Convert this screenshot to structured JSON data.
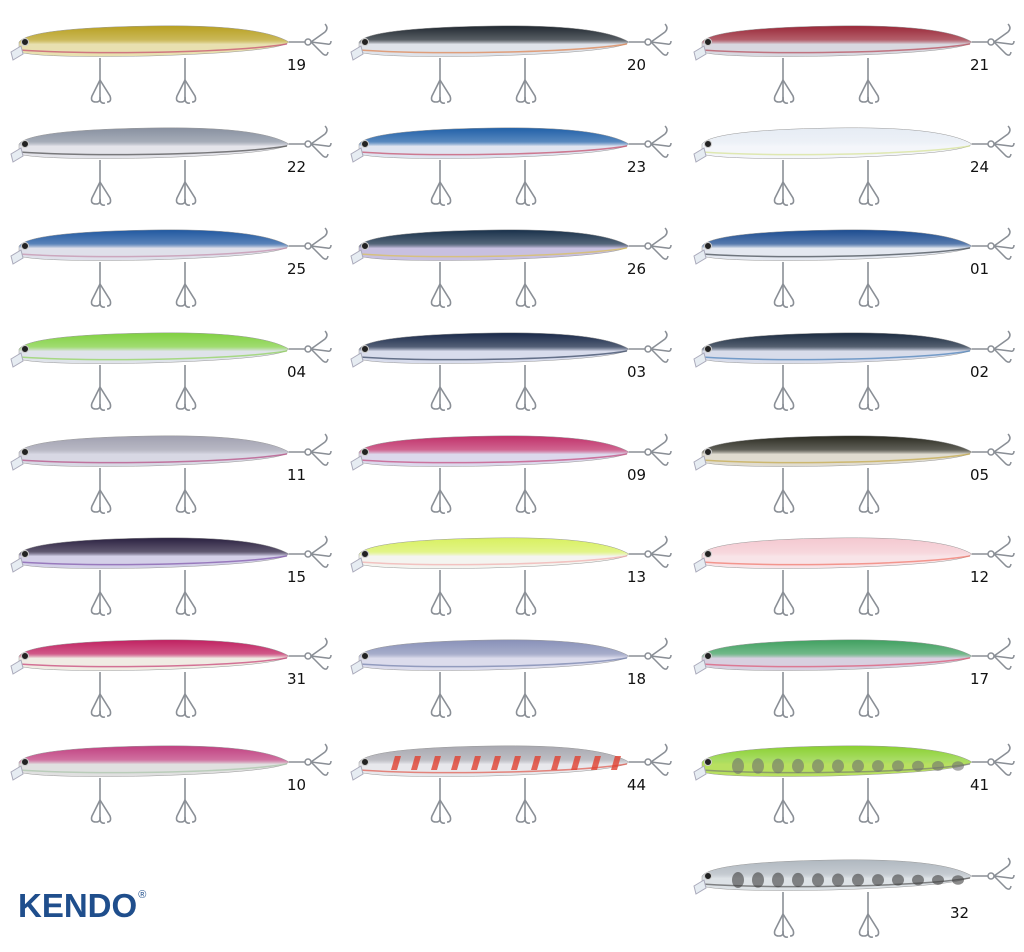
{
  "brand": {
    "name": "KENDO",
    "mark": "®",
    "color": "#1f4e8c"
  },
  "lures": [
    {
      "code": "19",
      "top": "#b8a020",
      "belly": "#e8e0b0",
      "accent": "#c03060"
    },
    {
      "code": "20",
      "top": "#202830",
      "belly": "#dfe3ea",
      "accent": "#e07030"
    },
    {
      "code": "21",
      "top": "#9a2838",
      "belly": "#d8d8e0",
      "accent": "#b03040"
    },
    {
      "code": "22",
      "top": "#8890a0",
      "belly": "#e4e4ea",
      "accent": "#303030"
    },
    {
      "code": "23",
      "top": "#2060a8",
      "belly": "#e0e4f0",
      "accent": "#c03050"
    },
    {
      "code": "24",
      "top": "#e6ecf4",
      "belly": "#f4f6fa",
      "accent": "#d0e080"
    },
    {
      "code": "25",
      "top": "#2058a0",
      "belly": "#dfe0ea",
      "accent": "#c080a0"
    },
    {
      "code": "26",
      "top": "#18304a",
      "belly": "#c8c0e0",
      "accent": "#e0c040"
    },
    {
      "code": "01",
      "top": "#1c4c90",
      "belly": "#e4e8f0",
      "accent": "#202830"
    },
    {
      "code": "04",
      "top": "#80d040",
      "belly": "#dfe3ea",
      "accent": "#80d040"
    },
    {
      "code": "03",
      "top": "#182848",
      "belly": "#d8dcec",
      "accent": "#182848"
    },
    {
      "code": "02",
      "top": "#1a2a40",
      "belly": "#d8dcea",
      "accent": "#3070b0"
    },
    {
      "code": "11",
      "top": "#a0a0b0",
      "belly": "#d8d8e4",
      "accent": "#b03070"
    },
    {
      "code": "09",
      "top": "#c0306a",
      "belly": "#dcd8ec",
      "accent": "#c0306a"
    },
    {
      "code": "05",
      "top": "#2a2a20",
      "belly": "#e0dcd0",
      "accent": "#c0a030"
    },
    {
      "code": "15",
      "top": "#2a2040",
      "belly": "#d4d0e8",
      "accent": "#7040a0"
    },
    {
      "code": "13",
      "top": "#d8f060",
      "belly": "#f4f4f0",
      "accent": "#f0a0a0"
    },
    {
      "code": "12",
      "top": "#f4c8d0",
      "belly": "#f8e4e8",
      "accent": "#f06050"
    },
    {
      "code": "31",
      "top": "#c02060",
      "belly": "#f0ece4",
      "accent": "#c02060"
    },
    {
      "code": "18",
      "top": "#8890b8",
      "belly": "#dcdcec",
      "accent": "#6070a0"
    },
    {
      "code": "17",
      "top": "#40a060",
      "belly": "#d8d0e0",
      "accent": "#e04060"
    },
    {
      "code": "10",
      "top": "#c04080",
      "belly": "#e0e0e0",
      "accent": "#a0c0a0"
    },
    {
      "code": "44",
      "top": "#a8a8b0",
      "belly": "#e8e8ec",
      "accent": "#e04030"
    },
    {
      "code": "41",
      "top": "#8ad030",
      "belly": "#b8e060",
      "accent": "#707070"
    },
    {
      "code": "32",
      "top": "#b0b8c0",
      "belly": "#dde2e6",
      "accent": "#404040"
    }
  ]
}
